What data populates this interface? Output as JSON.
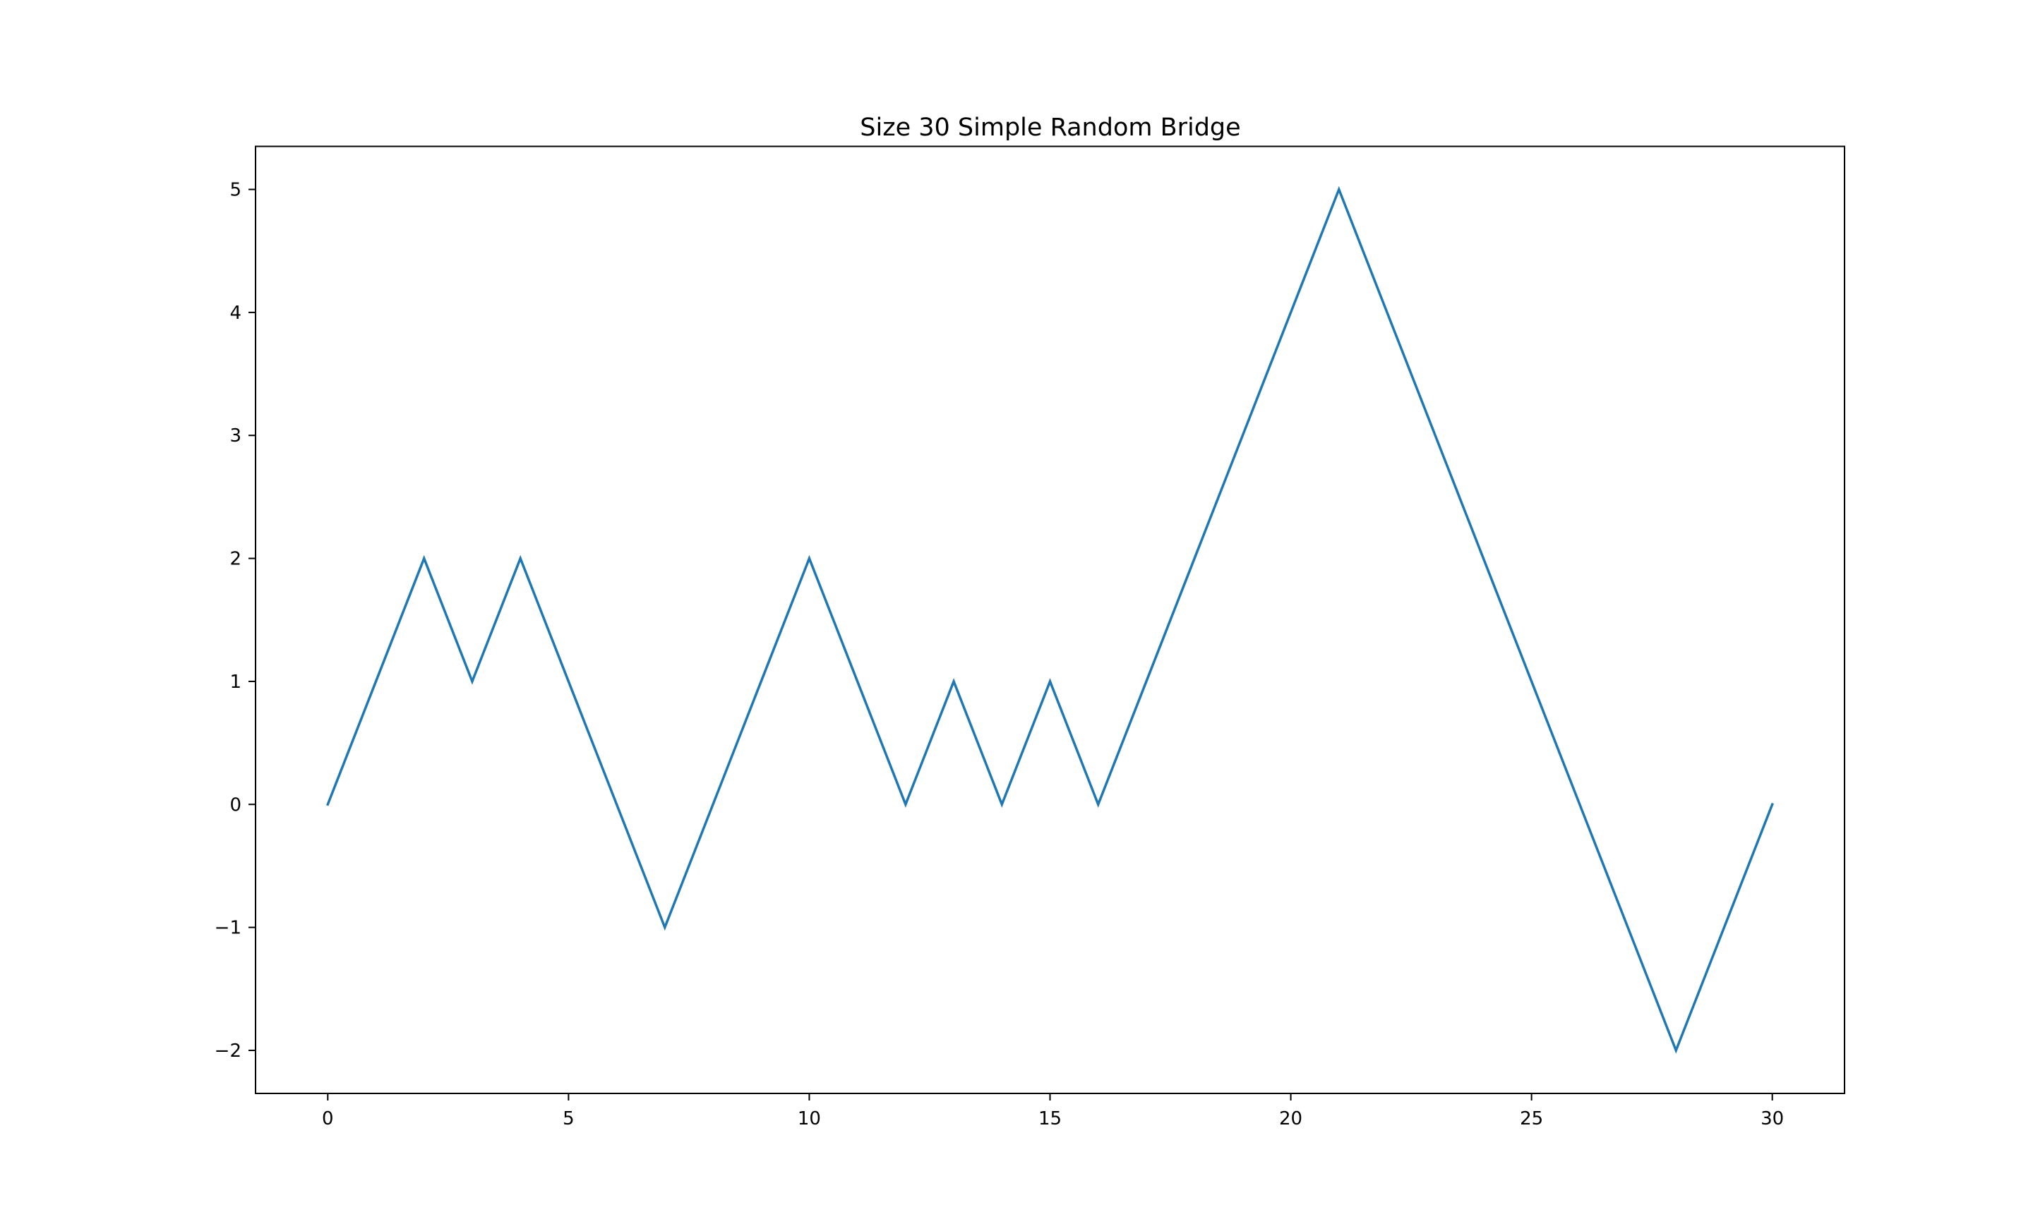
{
  "chart_data": {
    "type": "line",
    "title": "Size 30 Simple Random Bridge",
    "xlabel": "",
    "ylabel": "",
    "xlim": [
      -1.5,
      31.5
    ],
    "ylim": [
      -2.35,
      5.35
    ],
    "xticks": [
      0,
      5,
      10,
      15,
      20,
      25,
      30
    ],
    "yticks": [
      -2,
      -1,
      0,
      1,
      2,
      3,
      4,
      5
    ],
    "xtick_labels": [
      "0",
      "5",
      "10",
      "15",
      "20",
      "25",
      "30"
    ],
    "ytick_labels": [
      "−2",
      "−1",
      "0",
      "1",
      "2",
      "3",
      "4",
      "5"
    ],
    "grid": false,
    "legend": false,
    "line_color": "#1f77b4",
    "series": [
      {
        "x": [
          0,
          1,
          2,
          3,
          4,
          5,
          6,
          7,
          8,
          9,
          10,
          11,
          12,
          13,
          14,
          15,
          16,
          17,
          18,
          19,
          20,
          21,
          22,
          23,
          24,
          25,
          26,
          27,
          28,
          29,
          30
        ],
        "values": [
          0,
          1,
          2,
          1,
          2,
          1,
          0,
          -1,
          0,
          1,
          2,
          1,
          0,
          1,
          0,
          1,
          0,
          1,
          2,
          3,
          4,
          5,
          4,
          3,
          2,
          1,
          0,
          -1,
          -2,
          -1,
          0
        ]
      }
    ]
  }
}
